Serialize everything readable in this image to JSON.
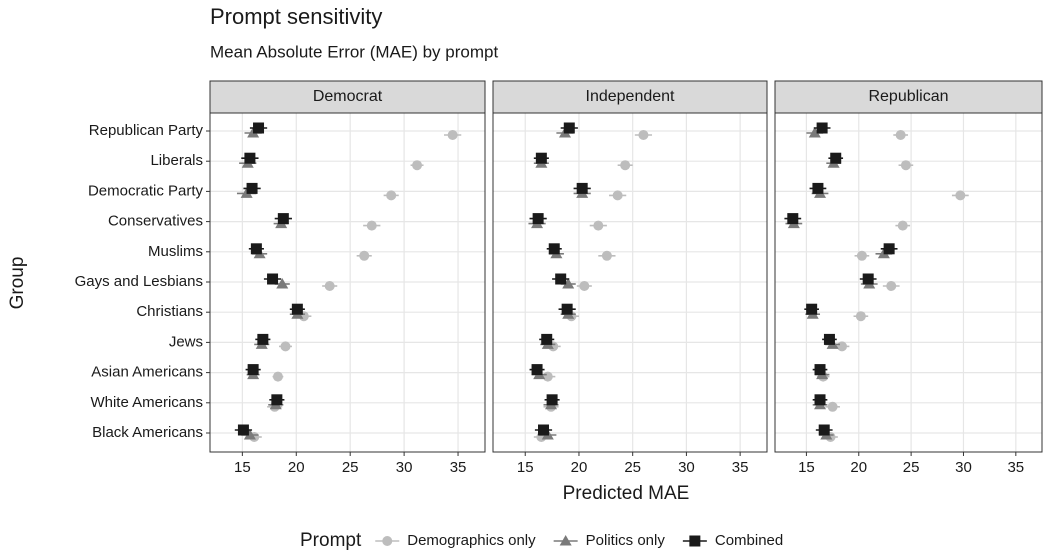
{
  "chart_data": {
    "type": "dot",
    "title": "Prompt sensitivity",
    "subtitle": "Mean Absolute Error (MAE) by prompt",
    "x_label": "Predicted MAE",
    "y_label": "Group",
    "legend_title": "Prompt",
    "legend_position": "bottom",
    "grid": true,
    "categories": [
      "Republican Party",
      "Liberals",
      "Democratic Party",
      "Conservatives",
      "Muslims",
      "Gays and Lesbians",
      "Christians",
      "Jews",
      "Asian Americans",
      "White Americans",
      "Black Americans"
    ],
    "xlim": [
      12,
      37.5
    ],
    "xticks": [
      15,
      20,
      25,
      30,
      35
    ],
    "series": [
      {
        "name": "Demographics only",
        "color": "#bdbdbd",
        "marker": "circle"
      },
      {
        "name": "Politics only",
        "color": "#7a7a7a",
        "marker": "triangle"
      },
      {
        "name": "Combined",
        "color": "#1a1a1a",
        "marker": "square"
      }
    ],
    "facets": [
      {
        "name": "Democrat",
        "values": [
          [
            34.5,
            31.2,
            28.8,
            27.0,
            26.3,
            23.1,
            20.7,
            19.0,
            18.3,
            18.0,
            16.1
          ],
          [
            16.0,
            15.5,
            15.4,
            18.6,
            16.6,
            18.7,
            20.1,
            16.8,
            16.0,
            18.1,
            15.7
          ],
          [
            16.5,
            15.7,
            15.9,
            18.8,
            16.3,
            17.8,
            20.1,
            16.9,
            16.0,
            18.2,
            15.1
          ]
        ],
        "errors": [
          [
            0.8,
            0.6,
            0.7,
            0.8,
            0.7,
            0.7,
            0.7,
            0.6,
            0.5,
            0.7,
            0.7
          ],
          [
            0.8,
            0.8,
            0.9,
            0.7,
            0.7,
            0.7,
            0.7,
            0.7,
            0.6,
            0.7,
            0.8
          ],
          [
            0.8,
            0.8,
            0.8,
            0.8,
            0.7,
            0.8,
            0.7,
            0.7,
            0.7,
            0.7,
            0.8
          ]
        ]
      },
      {
        "name": "Independent",
        "values": [
          [
            26.0,
            24.3,
            23.6,
            21.8,
            22.6,
            20.5,
            19.3,
            17.6,
            17.1,
            17.4,
            16.5
          ],
          [
            18.7,
            16.5,
            20.3,
            16.1,
            17.9,
            19.0,
            19.0,
            17.1,
            16.3,
            17.4,
            17.1
          ],
          [
            19.1,
            16.5,
            20.3,
            16.2,
            17.7,
            18.3,
            18.9,
            17.0,
            16.1,
            17.5,
            16.7
          ]
        ],
        "errors": [
          [
            0.8,
            0.7,
            0.8,
            0.8,
            0.8,
            0.7,
            0.7,
            0.7,
            0.7,
            0.7,
            0.7
          ],
          [
            0.8,
            0.7,
            0.8,
            0.8,
            0.7,
            0.7,
            0.7,
            0.7,
            0.7,
            0.7,
            0.8
          ],
          [
            0.8,
            0.7,
            0.8,
            0.8,
            0.7,
            0.8,
            0.8,
            0.7,
            0.7,
            0.7,
            0.8
          ]
        ]
      },
      {
        "name": "Republican",
        "values": [
          [
            24.0,
            24.5,
            29.7,
            24.2,
            20.3,
            23.1,
            20.2,
            18.4,
            16.6,
            17.5,
            17.3
          ],
          [
            15.8,
            17.6,
            16.3,
            13.8,
            22.4,
            21.0,
            15.6,
            17.5,
            16.5,
            16.3,
            16.9
          ],
          [
            16.5,
            17.8,
            16.1,
            13.7,
            22.9,
            20.9,
            15.5,
            17.2,
            16.3,
            16.3,
            16.7
          ]
        ],
        "errors": [
          [
            0.7,
            0.7,
            0.8,
            0.7,
            0.7,
            0.8,
            0.7,
            0.7,
            0.6,
            0.7,
            0.7
          ],
          [
            0.8,
            0.7,
            0.8,
            0.8,
            0.8,
            0.8,
            0.7,
            0.7,
            0.7,
            0.7,
            0.7
          ],
          [
            0.8,
            0.7,
            0.8,
            0.8,
            0.8,
            0.8,
            0.7,
            0.7,
            0.7,
            0.7,
            0.8
          ]
        ]
      }
    ]
  }
}
